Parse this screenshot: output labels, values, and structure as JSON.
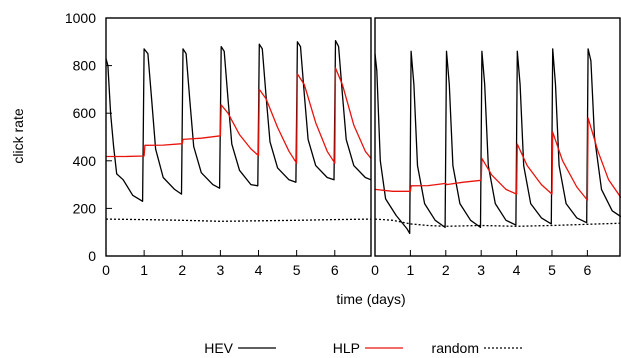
{
  "chart_data": {
    "type": "line",
    "ylabel": "click rate",
    "xlabel": "time (days)",
    "ylim": [
      0,
      1000
    ],
    "yticks": [
      0,
      200,
      400,
      600,
      800,
      1000
    ],
    "grid": false,
    "legend_placement": "bottom-center",
    "panels": [
      {
        "xlim": [
          0,
          6.95
        ],
        "xticks": [
          0,
          1,
          2,
          3,
          4,
          5,
          6
        ]
      },
      {
        "xlim": [
          0,
          6.95
        ],
        "xticks": [
          0,
          1,
          2,
          3,
          4,
          5,
          6
        ]
      }
    ],
    "series_styles": [
      {
        "name": "HEV",
        "color": "#000000",
        "dash": ""
      },
      {
        "name": "HLP",
        "color": "#e8140c",
        "dash": ""
      },
      {
        "name": "random",
        "color": "#000000",
        "dash": "2,2"
      }
    ],
    "left_panel": {
      "HEV": [
        [
          0,
          830
        ],
        [
          0.05,
          800
        ],
        [
          0.12,
          600
        ],
        [
          0.2,
          460
        ],
        [
          0.28,
          345
        ],
        [
          0.45,
          320
        ],
        [
          0.7,
          255
        ],
        [
          0.96,
          230
        ],
        [
          1.0,
          870
        ],
        [
          1.1,
          850
        ],
        [
          1.2,
          650
        ],
        [
          1.3,
          450
        ],
        [
          1.5,
          330
        ],
        [
          1.8,
          280
        ],
        [
          1.98,
          260
        ],
        [
          2.02,
          870
        ],
        [
          2.1,
          850
        ],
        [
          2.2,
          650
        ],
        [
          2.3,
          460
        ],
        [
          2.5,
          350
        ],
        [
          2.8,
          300
        ],
        [
          2.98,
          285
        ],
        [
          3.02,
          880
        ],
        [
          3.1,
          860
        ],
        [
          3.2,
          660
        ],
        [
          3.3,
          470
        ],
        [
          3.5,
          360
        ],
        [
          3.8,
          300
        ],
        [
          3.98,
          295
        ],
        [
          4.02,
          890
        ],
        [
          4.1,
          870
        ],
        [
          4.2,
          670
        ],
        [
          4.3,
          480
        ],
        [
          4.5,
          370
        ],
        [
          4.8,
          320
        ],
        [
          4.98,
          310
        ],
        [
          5.02,
          900
        ],
        [
          5.1,
          880
        ],
        [
          5.2,
          680
        ],
        [
          5.3,
          490
        ],
        [
          5.5,
          380
        ],
        [
          5.8,
          330
        ],
        [
          5.98,
          320
        ],
        [
          6.02,
          905
        ],
        [
          6.1,
          880
        ],
        [
          6.2,
          680
        ],
        [
          6.3,
          490
        ],
        [
          6.5,
          380
        ],
        [
          6.8,
          330
        ],
        [
          6.95,
          320
        ]
      ],
      "HLP": [
        [
          0,
          418
        ],
        [
          0.5,
          418
        ],
        [
          1.0,
          420
        ],
        [
          1.02,
          465
        ],
        [
          1.5,
          466
        ],
        [
          2.0,
          472
        ],
        [
          2.02,
          490
        ],
        [
          2.5,
          495
        ],
        [
          3.0,
          505
        ],
        [
          3.02,
          635
        ],
        [
          3.2,
          600
        ],
        [
          3.5,
          510
        ],
        [
          3.8,
          450
        ],
        [
          4.0,
          422
        ],
        [
          4.02,
          700
        ],
        [
          4.2,
          660
        ],
        [
          4.5,
          540
        ],
        [
          4.8,
          440
        ],
        [
          5.0,
          390
        ],
        [
          5.02,
          765
        ],
        [
          5.2,
          720
        ],
        [
          5.5,
          560
        ],
        [
          5.8,
          440
        ],
        [
          6.0,
          390
        ],
        [
          6.02,
          790
        ],
        [
          6.2,
          720
        ],
        [
          6.5,
          550
        ],
        [
          6.8,
          440
        ],
        [
          6.95,
          410
        ]
      ],
      "random": [
        [
          0,
          155
        ],
        [
          1,
          153
        ],
        [
          2,
          150
        ],
        [
          3,
          146
        ],
        [
          4,
          148
        ],
        [
          5,
          150
        ],
        [
          6,
          153
        ],
        [
          6.95,
          155
        ]
      ]
    },
    "right_panel": {
      "HEV": [
        [
          0,
          850
        ],
        [
          0.05,
          780
        ],
        [
          0.15,
          400
        ],
        [
          0.3,
          240
        ],
        [
          0.6,
          170
        ],
        [
          0.9,
          115
        ],
        [
          0.98,
          95
        ],
        [
          1.02,
          860
        ],
        [
          1.1,
          720
        ],
        [
          1.2,
          380
        ],
        [
          1.4,
          220
        ],
        [
          1.7,
          150
        ],
        [
          1.98,
          120
        ],
        [
          2.02,
          860
        ],
        [
          2.1,
          720
        ],
        [
          2.2,
          380
        ],
        [
          2.4,
          220
        ],
        [
          2.7,
          150
        ],
        [
          2.98,
          120
        ],
        [
          3.02,
          860
        ],
        [
          3.1,
          720
        ],
        [
          3.2,
          380
        ],
        [
          3.4,
          220
        ],
        [
          3.7,
          150
        ],
        [
          3.98,
          130
        ],
        [
          4.02,
          860
        ],
        [
          4.1,
          720
        ],
        [
          4.2,
          380
        ],
        [
          4.4,
          220
        ],
        [
          4.7,
          160
        ],
        [
          4.98,
          135
        ],
        [
          5.02,
          870
        ],
        [
          5.1,
          720
        ],
        [
          5.2,
          380
        ],
        [
          5.4,
          220
        ],
        [
          5.7,
          160
        ],
        [
          5.98,
          140
        ],
        [
          6.02,
          870
        ],
        [
          6.1,
          820
        ],
        [
          6.2,
          500
        ],
        [
          6.4,
          280
        ],
        [
          6.7,
          190
        ],
        [
          6.95,
          165
        ]
      ],
      "HLP": [
        [
          0,
          280
        ],
        [
          0.5,
          272
        ],
        [
          1.0,
          272
        ],
        [
          1.02,
          295
        ],
        [
          1.5,
          296
        ],
        [
          2.0,
          305
        ],
        [
          2.02,
          300
        ],
        [
          2.5,
          310
        ],
        [
          3.0,
          318
        ],
        [
          3.02,
          410
        ],
        [
          3.3,
          340
        ],
        [
          3.7,
          280
        ],
        [
          4.0,
          260
        ],
        [
          4.02,
          470
        ],
        [
          4.3,
          380
        ],
        [
          4.7,
          300
        ],
        [
          5.0,
          260
        ],
        [
          5.02,
          520
        ],
        [
          5.3,
          400
        ],
        [
          5.7,
          290
        ],
        [
          6.0,
          235
        ],
        [
          6.02,
          580
        ],
        [
          6.3,
          440
        ],
        [
          6.6,
          320
        ],
        [
          6.95,
          245
        ]
      ],
      "random": [
        [
          0,
          155
        ],
        [
          0.5,
          150
        ],
        [
          1.0,
          135
        ],
        [
          1.5,
          128
        ],
        [
          2,
          125
        ],
        [
          3,
          128
        ],
        [
          4,
          125
        ],
        [
          5,
          128
        ],
        [
          6,
          133
        ],
        [
          6.95,
          138
        ]
      ]
    }
  }
}
